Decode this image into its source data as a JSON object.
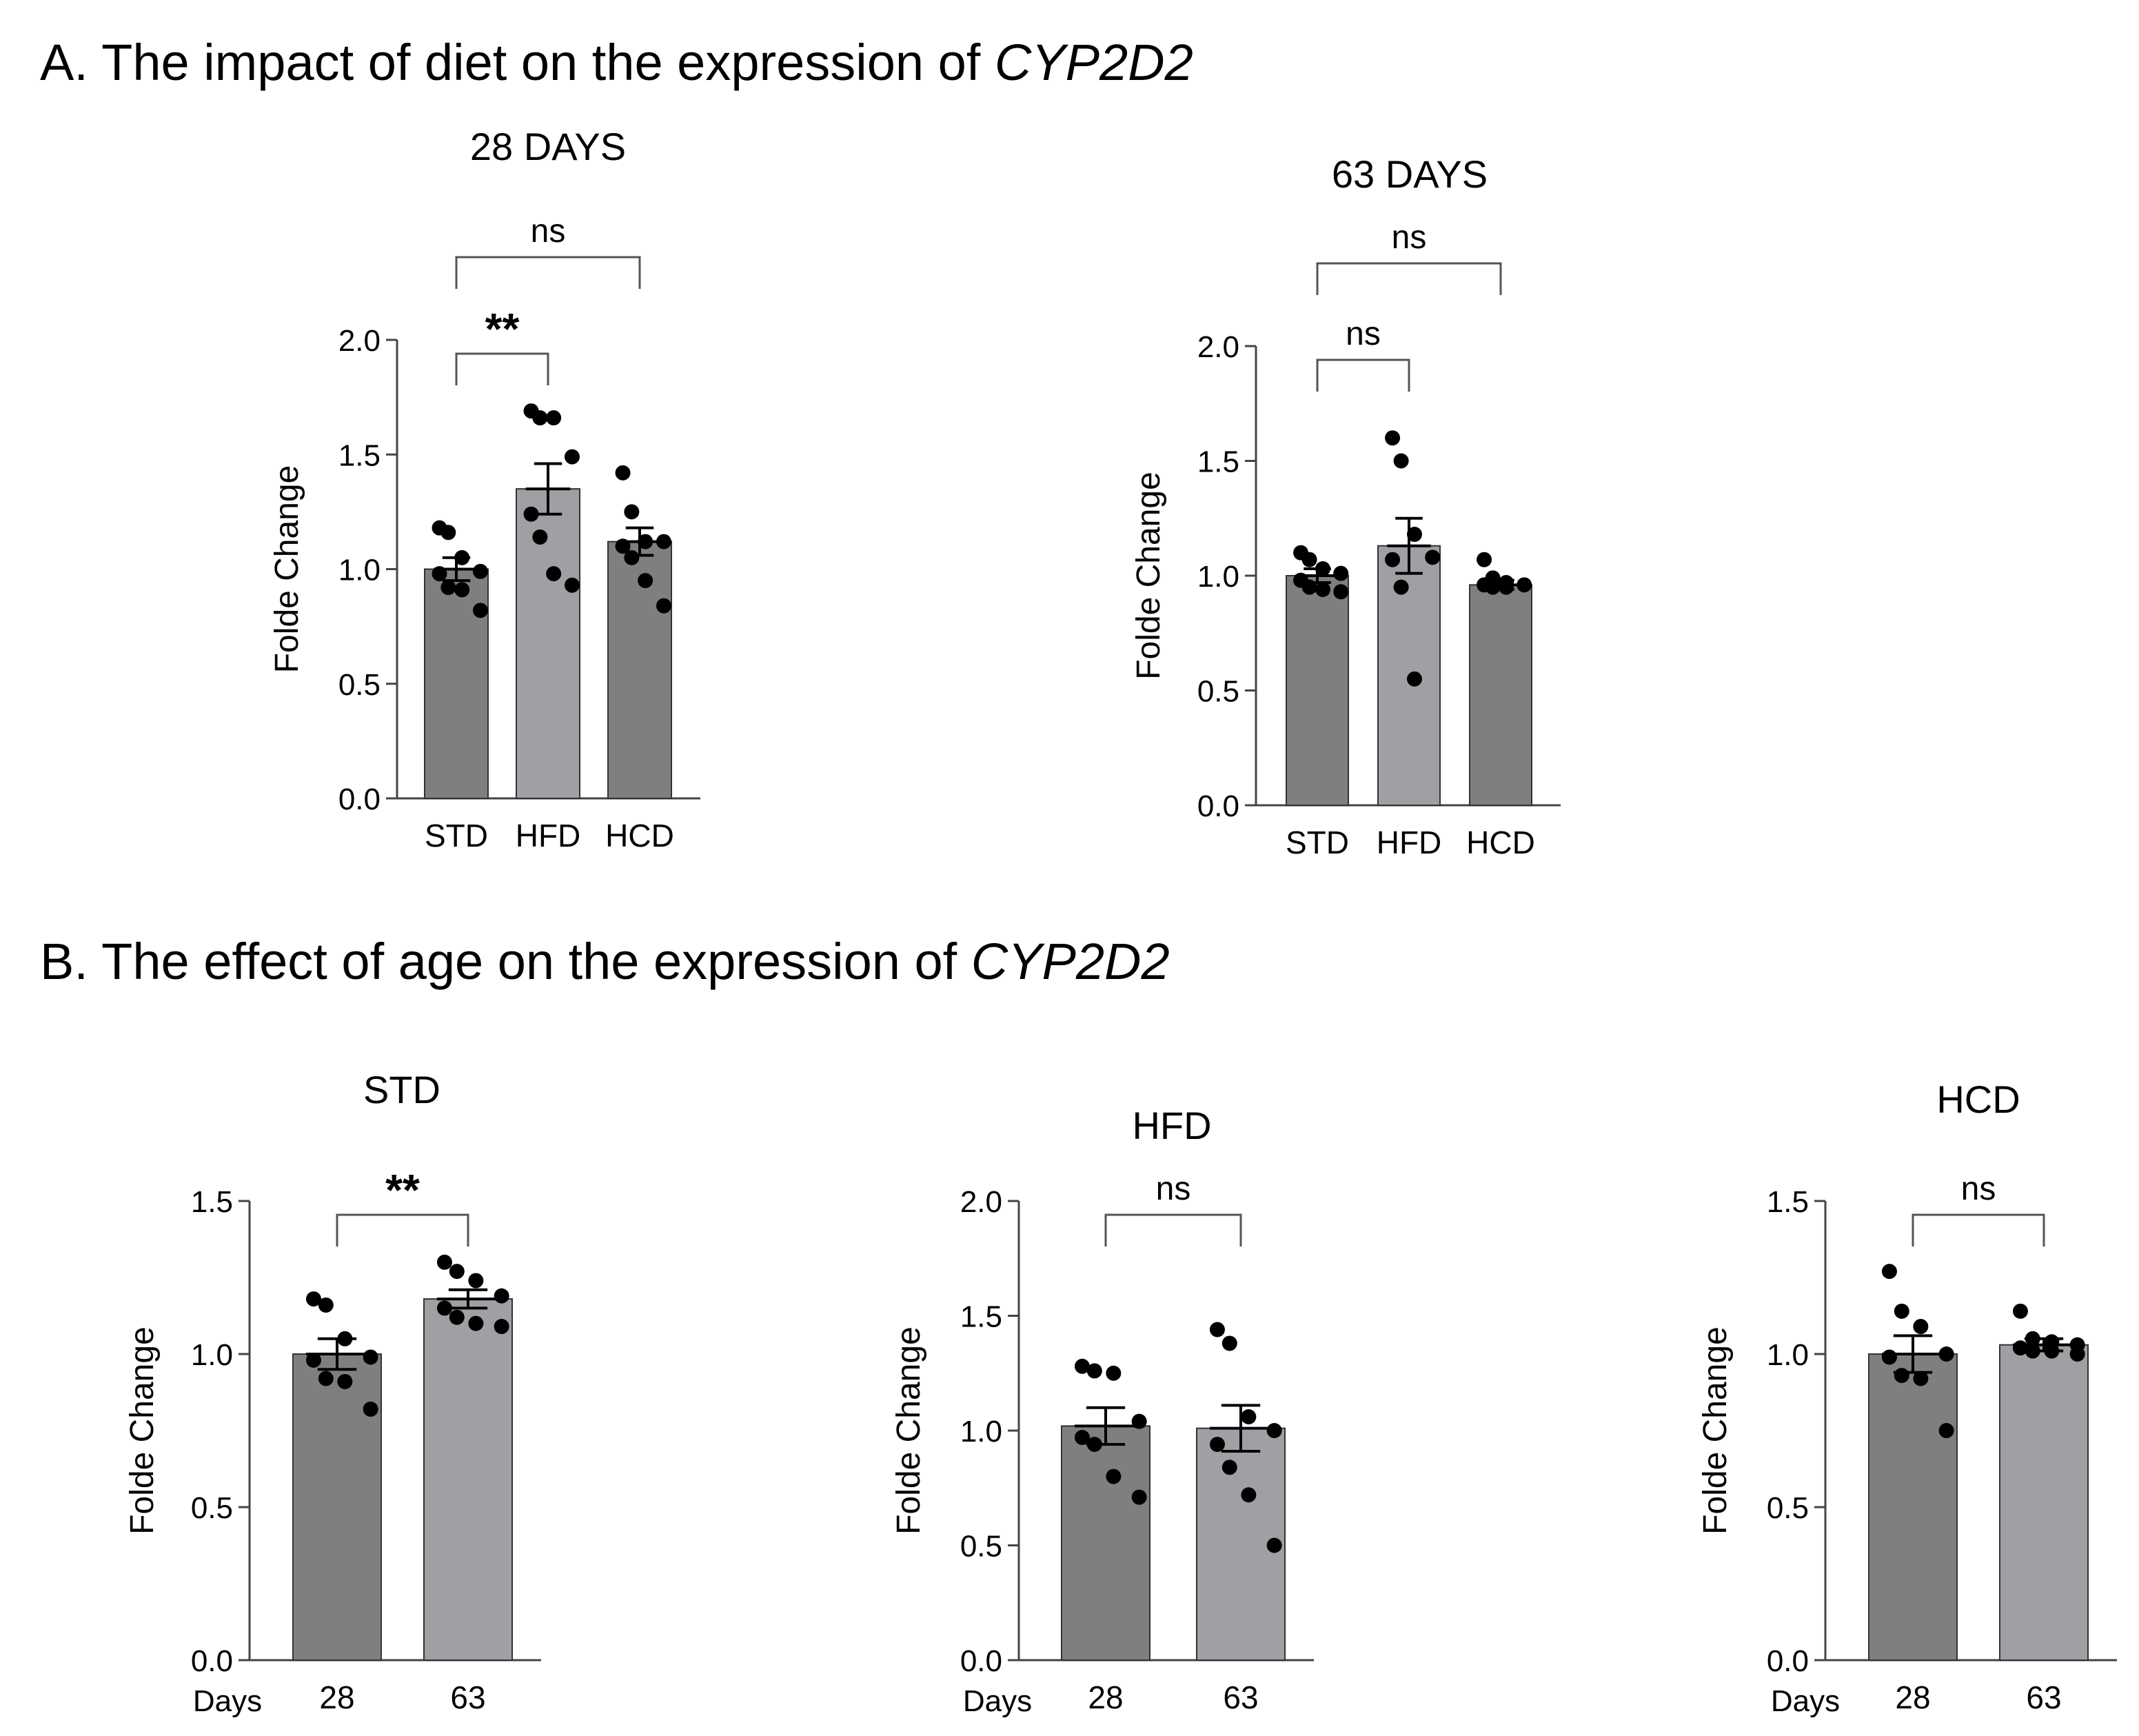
{
  "sections": {
    "a": {
      "label": "A. The impact of diet on the expression of ",
      "gene": "CYP2D2"
    },
    "b": {
      "label": "B. The effect of age on the expression of ",
      "gene": "CYP2D2"
    }
  },
  "colors": {
    "dark_bar": "#7f7f7f",
    "light_bar": "#a0a0a4",
    "axis": "#444444",
    "point": "#000000"
  },
  "chart_data": [
    {
      "id": "a1",
      "type": "bar",
      "title": "28 DAYS",
      "xlabel": "",
      "ylabel": "Folde Change",
      "categories": [
        "STD",
        "HFD",
        "HCD"
      ],
      "values": [
        1.0,
        1.35,
        1.12
      ],
      "sem": [
        0.05,
        0.11,
        0.06
      ],
      "ylim": [
        0,
        2.0
      ],
      "yticks": [
        0.0,
        0.5,
        1.0,
        1.5,
        2.0
      ],
      "ytick_labels": [
        "0.0",
        "0.5",
        "1.0",
        "1.5",
        "2.0"
      ],
      "points": [
        [
          1.18,
          1.16,
          1.05,
          0.99,
          0.98,
          0.92,
          0.91,
          0.82
        ],
        [
          1.69,
          1.66,
          1.66,
          1.49,
          1.24,
          1.14,
          0.98,
          0.93
        ],
        [
          1.42,
          1.25,
          1.12,
          1.12,
          1.1,
          1.05,
          0.95,
          0.84
        ]
      ],
      "comparisons": [
        {
          "from": 0,
          "to": 1,
          "label": "**",
          "level": 0
        },
        {
          "from": 0,
          "to": 2,
          "label": "ns",
          "level": 1
        }
      ],
      "xlabel_prefix": ""
    },
    {
      "id": "a2",
      "type": "bar",
      "title": "63 DAYS",
      "xlabel": "",
      "ylabel": "Folde Change",
      "categories": [
        "STD",
        "HFD",
        "HCD"
      ],
      "values": [
        1.0,
        1.13,
        0.96
      ],
      "sem": [
        0.03,
        0.12,
        0.02
      ],
      "ylim": [
        0,
        2.0
      ],
      "yticks": [
        0.0,
        0.5,
        1.0,
        1.5,
        2.0
      ],
      "ytick_labels": [
        "0.0",
        "0.5",
        "1.0",
        "1.5",
        "2.0"
      ],
      "points": [
        [
          1.1,
          1.07,
          1.03,
          1.01,
          0.98,
          0.95,
          0.94,
          0.93
        ],
        [
          1.6,
          1.5,
          1.18,
          1.08,
          1.07,
          0.95,
          0.55
        ],
        [
          1.07,
          0.99,
          0.97,
          0.96,
          0.96,
          0.95,
          0.95
        ]
      ],
      "comparisons": [
        {
          "from": 0,
          "to": 1,
          "label": "ns",
          "level": 0
        },
        {
          "from": 0,
          "to": 2,
          "label": "ns",
          "level": 1
        }
      ],
      "xlabel_prefix": ""
    },
    {
      "id": "b1",
      "type": "bar",
      "title": "STD",
      "xlabel": "Days",
      "ylabel": "Folde Change",
      "categories": [
        "28",
        "63"
      ],
      "values": [
        1.0,
        1.18
      ],
      "sem": [
        0.05,
        0.03
      ],
      "ylim": [
        0,
        1.5
      ],
      "yticks": [
        0.0,
        0.5,
        1.0,
        1.5
      ],
      "ytick_labels": [
        "0.0",
        "0.5",
        "1.0",
        "1.5"
      ],
      "points": [
        [
          1.18,
          1.16,
          1.05,
          0.99,
          0.98,
          0.92,
          0.91,
          0.82
        ],
        [
          1.3,
          1.27,
          1.24,
          1.19,
          1.15,
          1.12,
          1.1,
          1.09
        ]
      ],
      "comparisons": [
        {
          "from": 0,
          "to": 1,
          "label": "**",
          "level": 0
        }
      ],
      "xlabel_prefix": "Days"
    },
    {
      "id": "b2",
      "type": "bar",
      "title": "HFD",
      "xlabel": "Days",
      "ylabel": "Folde Change",
      "categories": [
        "28",
        "63"
      ],
      "values": [
        1.02,
        1.01
      ],
      "sem": [
        0.08,
        0.1
      ],
      "ylim": [
        0,
        2.0
      ],
      "yticks": [
        0.0,
        0.5,
        1.0,
        1.5,
        2.0
      ],
      "ytick_labels": [
        "0.0",
        "0.5",
        "1.0",
        "1.5",
        "2.0"
      ],
      "points": [
        [
          1.28,
          1.26,
          1.25,
          1.04,
          0.97,
          0.94,
          0.8,
          0.71
        ],
        [
          1.44,
          1.38,
          1.06,
          1.0,
          0.94,
          0.84,
          0.72,
          0.5
        ]
      ],
      "comparisons": [
        {
          "from": 0,
          "to": 1,
          "label": "ns",
          "level": 0
        }
      ],
      "xlabel_prefix": "Days"
    },
    {
      "id": "b3",
      "type": "bar",
      "title": "HCD",
      "xlabel": "Days",
      "ylabel": "Folde Change",
      "categories": [
        "28",
        "63"
      ],
      "values": [
        1.0,
        1.03
      ],
      "sem": [
        0.06,
        0.02
      ],
      "ylim": [
        0,
        1.5
      ],
      "yticks": [
        0.0,
        0.5,
        1.0,
        1.5
      ],
      "ytick_labels": [
        "0.0",
        "0.5",
        "1.0",
        "1.5"
      ],
      "points": [
        [
          1.27,
          1.14,
          1.09,
          1.0,
          0.99,
          0.93,
          0.92,
          0.75
        ],
        [
          1.14,
          1.05,
          1.04,
          1.03,
          1.02,
          1.01,
          1.01,
          1.0
        ]
      ],
      "comparisons": [
        {
          "from": 0,
          "to": 1,
          "label": "ns",
          "level": 0
        }
      ],
      "xlabel_prefix": "Days"
    }
  ]
}
